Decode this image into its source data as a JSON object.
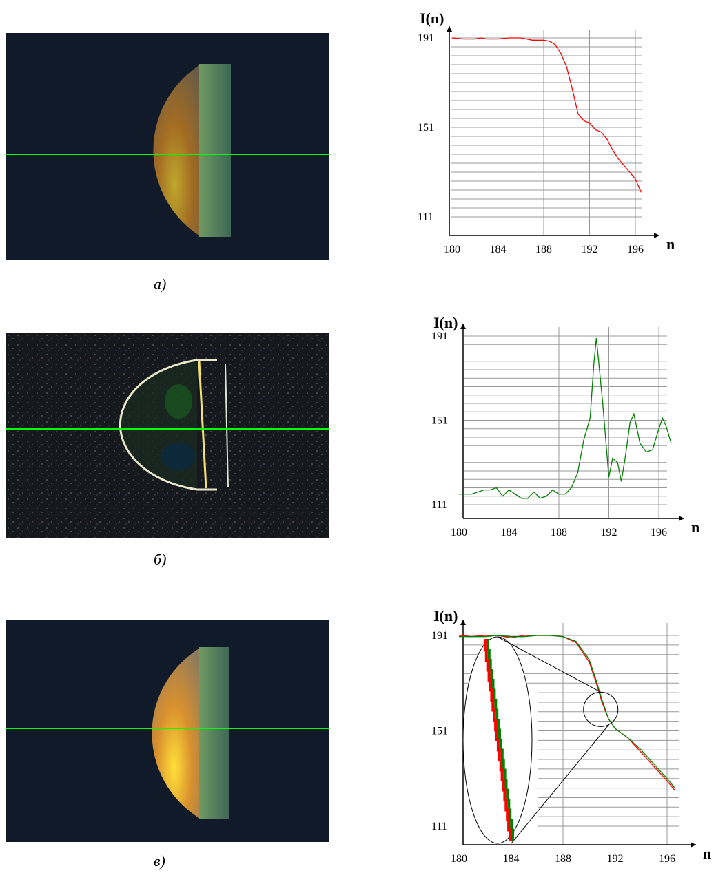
{
  "captions": [
    "a)",
    "б)",
    "в)"
  ],
  "colors": {
    "red": "#ff0000",
    "green": "#008000",
    "scanline": "#00ff00",
    "grid": "#888888"
  },
  "chart_data": [
    {
      "type": "line",
      "ylabel": "I(n)",
      "xlabel": "n",
      "xticks": [
        "180",
        "184",
        "188",
        "192",
        "196"
      ],
      "yticks": [
        "191",
        "151",
        "111"
      ],
      "xlim": [
        180,
        196.5
      ],
      "ylim": [
        111,
        191
      ],
      "series": [
        {
          "color": "#ff0000",
          "x": [
            180,
            181,
            182,
            182.5,
            183,
            184,
            185,
            186,
            187,
            188,
            188.5,
            189,
            189.5,
            190,
            190.5,
            191,
            191.5,
            192,
            192.5,
            193,
            193.5,
            194,
            194.5,
            195,
            195.5,
            196,
            196.5
          ],
          "y": [
            191,
            190.5,
            190.5,
            191,
            190.5,
            190.5,
            191,
            191,
            190,
            190,
            189.5,
            188,
            184,
            178,
            168,
            157,
            154,
            153,
            150,
            149,
            146,
            141,
            137,
            134,
            131,
            128,
            122
          ]
        }
      ]
    },
    {
      "type": "line",
      "ylabel": "I(n)",
      "xlabel": "n",
      "xticks": [
        "180",
        "184",
        "188",
        "192",
        "196"
      ],
      "yticks": [
        "191",
        "151",
        "111"
      ],
      "xlim": [
        180,
        197
      ],
      "ylim": [
        111,
        191
      ],
      "series": [
        {
          "color": "#008000",
          "x": [
            180,
            181,
            182,
            182.5,
            183,
            183.5,
            184,
            184.5,
            185,
            185.5,
            186,
            186.5,
            187,
            187.5,
            188,
            188.5,
            189,
            189.5,
            190,
            190.5,
            190.8,
            191,
            191.5,
            192,
            192.3,
            192.7,
            193,
            193.3,
            193.7,
            194,
            194.5,
            195,
            195.5,
            196,
            196.3,
            196.6,
            197
          ],
          "y": [
            116,
            116,
            118,
            118,
            119,
            115,
            118,
            116,
            114,
            114,
            117,
            114,
            115,
            118,
            116,
            116,
            119,
            126,
            142,
            152,
            178,
            190,
            160,
            124,
            133,
            131,
            122,
            133,
            150,
            154,
            140,
            136,
            137,
            147,
            152,
            148,
            140
          ]
        }
      ]
    },
    {
      "type": "line",
      "ylabel": "I(n)",
      "xlabel": "n",
      "xticks": [
        "180",
        "184",
        "188",
        "192",
        "196"
      ],
      "yticks": [
        "191",
        "151",
        "111"
      ],
      "xlim": [
        180,
        197
      ],
      "ylim": [
        111,
        191
      ],
      "series": [
        {
          "color": "#ff0000",
          "x": [
            180,
            181,
            182,
            183,
            184,
            185,
            186,
            187,
            188,
            189,
            190,
            190.5,
            191,
            191.5,
            192,
            192.5,
            193,
            194,
            195,
            196,
            196.6
          ],
          "y": [
            191,
            190.5,
            191,
            191,
            190,
            191,
            191,
            191,
            190.5,
            188,
            180,
            172,
            163,
            156,
            152,
            150,
            148,
            142,
            136,
            130,
            126
          ]
        },
        {
          "color": "#008000",
          "x": [
            180,
            181,
            182,
            183,
            184,
            185,
            186,
            187,
            188,
            189,
            190,
            190.5,
            191,
            191.5,
            192,
            192.5,
            193,
            194,
            195,
            196,
            196.6
          ],
          "y": [
            190.5,
            190.5,
            190.5,
            191,
            190.5,
            190.5,
            191,
            191,
            190.5,
            188.5,
            181,
            173,
            164,
            156,
            152,
            150,
            148,
            143,
            137,
            131,
            127
          ]
        }
      ]
    }
  ]
}
